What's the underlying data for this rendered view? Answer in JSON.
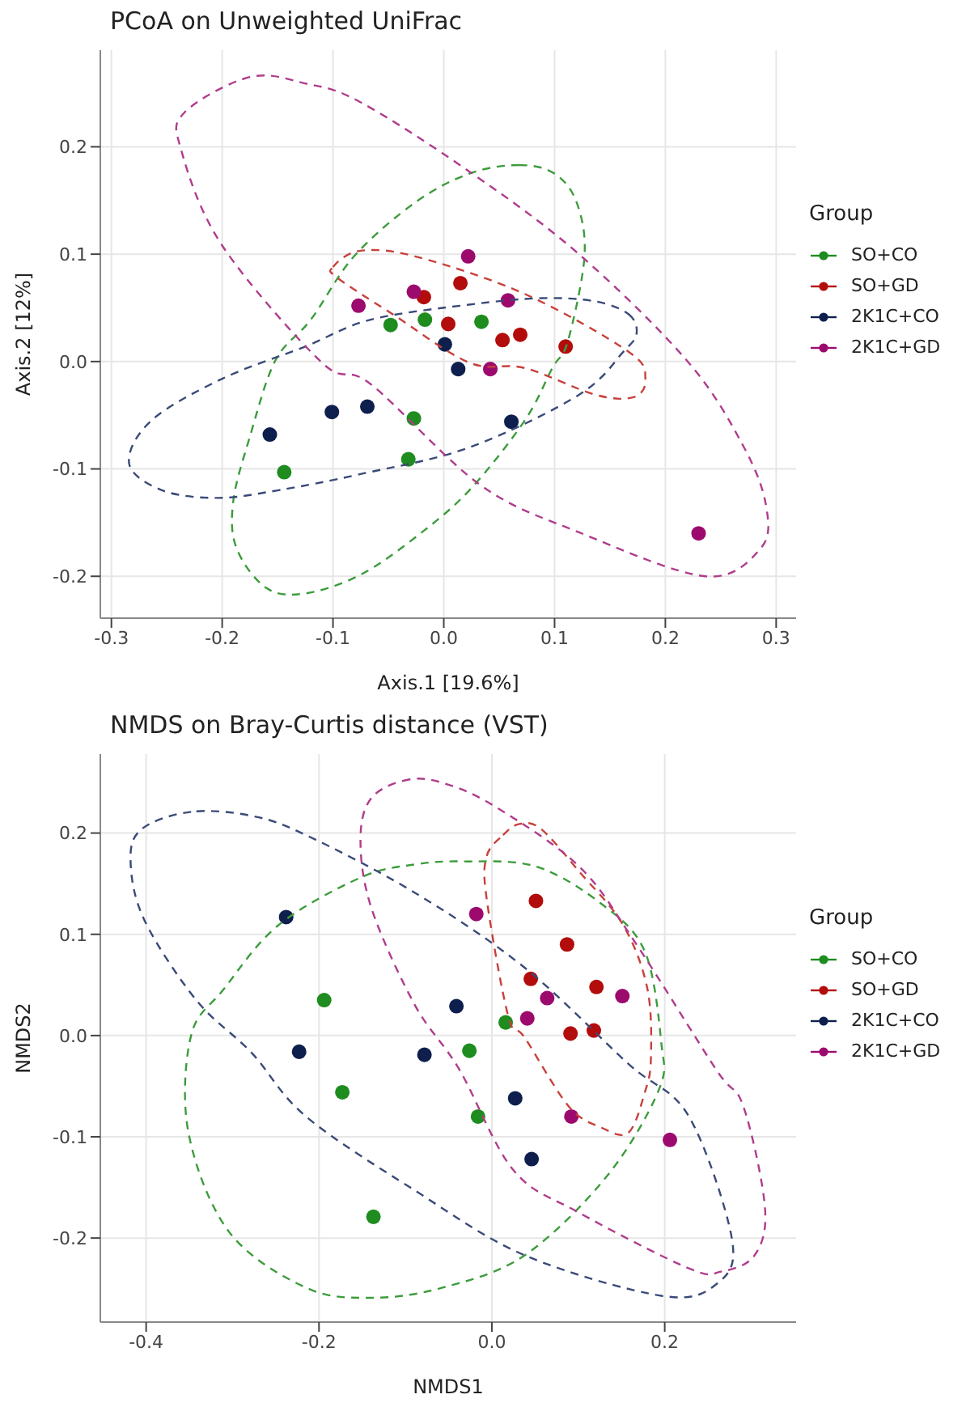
{
  "chart_data": [
    {
      "type": "scatter",
      "title": "PCoA on Unweighted UniFrac",
      "xlabel": "Axis.1   [19.6%]",
      "ylabel": "Axis.2   [12%]",
      "legend_title": "Group",
      "legend": "right",
      "grid": true,
      "marker": "circle",
      "xlim": [
        -0.31,
        0.318
      ],
      "ylim": [
        -0.239,
        0.29
      ],
      "xticks": [
        -0.3,
        -0.2,
        -0.1,
        {
          "value": 0,
          "label": "0.0"
        },
        0.1,
        0.2,
        0.3
      ],
      "yticks": [
        -0.2,
        -0.1,
        {
          "value": 0,
          "label": "0.0"
        },
        0.1,
        0.2
      ],
      "series": [
        {
          "name": "SO+CO",
          "color": "#1e8c1e",
          "x": [
            -0.048,
            -0.017,
            0.034,
            -0.027,
            -0.032,
            -0.144
          ],
          "values": [
            0.034,
            0.039,
            0.037,
            -0.053,
            -0.091,
            -0.103
          ]
        },
        {
          "name": "SO+GD",
          "color": "#b30c0c",
          "x": [
            -0.018,
            0.015,
            0.004,
            0.053,
            0.069,
            0.11
          ],
          "values": [
            0.06,
            0.073,
            0.035,
            0.02,
            0.025,
            0.014
          ]
        },
        {
          "name": "2K1C+CO",
          "color": "#0e1f4d",
          "x": [
            0.001,
            0.013,
            -0.101,
            -0.069,
            0.061,
            -0.157
          ],
          "values": [
            0.016,
            -0.007,
            -0.047,
            -0.042,
            -0.056,
            -0.068
          ]
        },
        {
          "name": "2K1C+GD",
          "color": "#9c0a6e",
          "x": [
            0.022,
            -0.027,
            -0.077,
            0.058,
            0.042,
            0.23
          ],
          "values": [
            0.098,
            0.065,
            0.052,
            0.057,
            -0.007,
            -0.16
          ]
        }
      ]
    },
    {
      "type": "scatter",
      "title": "NMDS on Bray-Curtis distance (VST)",
      "xlabel": "NMDS1",
      "ylabel": "NMDS2",
      "legend_title": "Group",
      "legend": "right",
      "grid": true,
      "marker": "circle",
      "xlim": [
        -0.453,
        0.352
      ],
      "ylim": [
        -0.283,
        0.278
      ],
      "xticks": [
        -0.4,
        -0.2,
        {
          "value": 0,
          "label": "0.0"
        },
        0.2
      ],
      "yticks": [
        -0.2,
        -0.1,
        {
          "value": 0,
          "label": "0.0"
        },
        0.1,
        0.2
      ],
      "series": [
        {
          "name": "SO+CO",
          "color": "#1e8c1e",
          "x": [
            -0.194,
            0.016,
            -0.026,
            -0.173,
            -0.016,
            -0.137
          ],
          "values": [
            0.035,
            0.013,
            -0.015,
            -0.056,
            -0.08,
            -0.179
          ]
        },
        {
          "name": "SO+GD",
          "color": "#b30c0c",
          "x": [
            0.051,
            0.087,
            0.045,
            0.121,
            0.091,
            0.118
          ],
          "values": [
            0.133,
            0.09,
            0.056,
            0.048,
            0.002,
            0.005
          ]
        },
        {
          "name": "2K1C+CO",
          "color": "#0e1f4d",
          "x": [
            -0.238,
            -0.041,
            -0.223,
            -0.078,
            0.027,
            0.046
          ],
          "values": [
            0.117,
            0.029,
            -0.016,
            -0.019,
            -0.062,
            -0.122
          ]
        },
        {
          "name": "2K1C+GD",
          "color": "#9c0a6e",
          "x": [
            -0.018,
            0.064,
            0.151,
            0.041,
            0.092,
            0.206
          ],
          "values": [
            0.12,
            0.037,
            0.039,
            0.017,
            -0.08,
            -0.103
          ]
        }
      ]
    }
  ]
}
